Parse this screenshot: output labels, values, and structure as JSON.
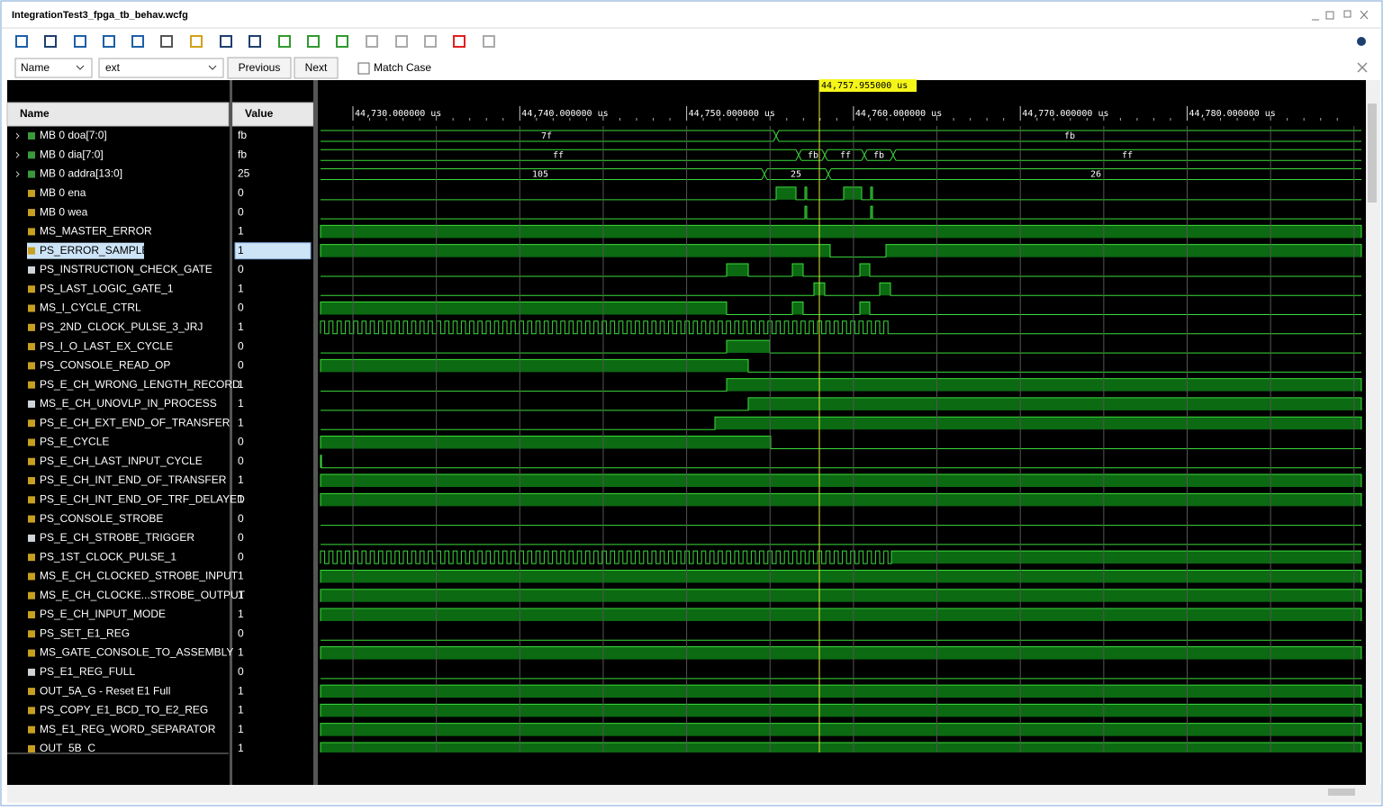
{
  "window": {
    "title": "IntegrationTest3_fpga_tb_behav.wcfg",
    "search": {
      "field": "Name",
      "query": "ext",
      "previous": "Previous",
      "next": "Next",
      "match_case": "Match Case"
    }
  },
  "waveform": {
    "headers": {
      "name": "Name",
      "value": "Value"
    },
    "cursor": "44,757.955000 us",
    "time_ticks": [
      "44,730.000000 us",
      "44,740.000000 us",
      "44,750.000000 us",
      "44,760.000000 us",
      "44,770.000000 us",
      "44,780.000000 us"
    ],
    "signals": [
      {
        "name": "MB 0 doa[7:0]",
        "value": "fb",
        "segments": [
          "7f",
          "fb"
        ]
      },
      {
        "name": "MB 0 dia[7:0]",
        "value": "fb",
        "segments": [
          "ff",
          "fb",
          "ff",
          "fb",
          "ff"
        ]
      },
      {
        "name": "MB 0 addra[13:0]",
        "value": "25",
        "segments": [
          "105",
          "25",
          "26"
        ]
      },
      {
        "name": "MB 0 ena",
        "value": "0"
      },
      {
        "name": "MB 0 wea",
        "value": "0"
      },
      {
        "name": "MS_MASTER_ERROR",
        "value": "1"
      },
      {
        "name": "PS_ERROR_SAMPLE",
        "value": "1"
      },
      {
        "name": "PS_INSTRUCTION_CHECK_GATE",
        "value": "0"
      },
      {
        "name": "PS_LAST_LOGIC_GATE_1",
        "value": "1"
      },
      {
        "name": "MS_I_CYCLE_CTRL",
        "value": "0"
      },
      {
        "name": "PS_2ND_CLOCK_PULSE_3_JRJ",
        "value": "1"
      },
      {
        "name": "PS_I_O_LAST_EX_CYCLE",
        "value": "0"
      },
      {
        "name": "PS_CONSOLE_READ_OP",
        "value": "0"
      },
      {
        "name": "PS_E_CH_WRONG_LENGTH_RECORD",
        "value": "1"
      },
      {
        "name": "MS_E_CH_UNOVLP_IN_PROCESS",
        "value": "1"
      },
      {
        "name": "PS_E_CH_EXT_END_OF_TRANSFER",
        "value": "1"
      },
      {
        "name": "PS_E_CYCLE",
        "value": "0"
      },
      {
        "name": "PS_E_CH_LAST_INPUT_CYCLE",
        "value": "0"
      },
      {
        "name": "PS_E_CH_INT_END_OF_TRANSFER",
        "value": "1"
      },
      {
        "name": "PS_E_CH_INT_END_OF_TRF_DELAYED",
        "value": "1"
      },
      {
        "name": "PS_CONSOLE_STROBE",
        "value": "0"
      },
      {
        "name": "PS_E_CH_STROBE_TRIGGER",
        "value": "0"
      },
      {
        "name": "PS_1ST_CLOCK_PULSE_1",
        "value": "0"
      },
      {
        "name": "MS_E_CH_CLOCKED_STROBE_INPUT",
        "value": "1"
      },
      {
        "name": "MS_E_CH_CLOCKE...STROBE_OUTPUT",
        "value": "1"
      },
      {
        "name": "PS_E_CH_INPUT_MODE",
        "value": "1"
      },
      {
        "name": "PS_SET_E1_REG",
        "value": "0"
      },
      {
        "name": "MS_GATE_CONSOLE_TO_ASSEMBLY",
        "value": "1"
      },
      {
        "name": "PS_E1_REG_FULL",
        "value": "0"
      },
      {
        "name": "OUT_5A_G - Reset E1 Full",
        "value": "1"
      },
      {
        "name": "PS_COPY_E1_BCD_TO_E2_REG",
        "value": "1"
      },
      {
        "name": "MS_E1_REG_WORD_SEPARATOR",
        "value": "1"
      },
      {
        "name": "OUT_5B_C",
        "value": "1"
      }
    ]
  }
}
